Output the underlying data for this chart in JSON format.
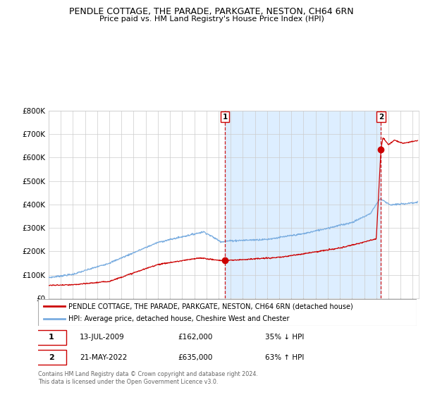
{
  "title": "PENDLE COTTAGE, THE PARADE, PARKGATE, NESTON, CH64 6RN",
  "subtitle": "Price paid vs. HM Land Registry's House Price Index (HPI)",
  "legend_line1": "PENDLE COTTAGE, THE PARADE, PARKGATE, NESTON, CH64 6RN (detached house)",
  "legend_line2": "HPI: Average price, detached house, Cheshire West and Chester",
  "sale1_date": "13-JUL-2009",
  "sale1_price": "£162,000",
  "sale1_hpi": "35% ↓ HPI",
  "sale1_year": 2009.53,
  "sale1_value": 162000,
  "sale2_date": "21-MAY-2022",
  "sale2_price": "£635,000",
  "sale2_hpi": "63% ↑ HPI",
  "sale2_year": 2022.38,
  "sale2_value": 635000,
  "footer": "Contains HM Land Registry data © Crown copyright and database right 2024.\nThis data is licensed under the Open Government Licence v3.0.",
  "red_color": "#cc0000",
  "blue_color": "#7aade0",
  "bg_shade_color": "#ddeeff",
  "grid_color": "#cccccc",
  "ylim": [
    0,
    800000
  ],
  "xlim_start": 1995.0,
  "xlim_end": 2025.5
}
